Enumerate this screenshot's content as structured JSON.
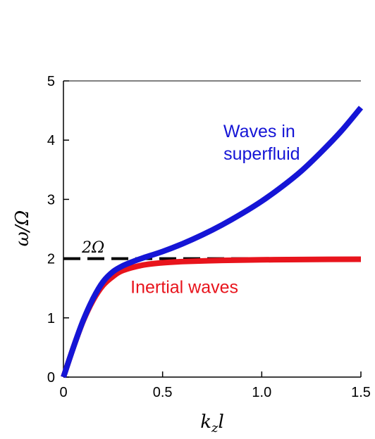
{
  "chart_data": {
    "type": "line",
    "xlabel": "k_z l",
    "ylabel": "ω/Ω",
    "xlim": [
      0,
      1.5
    ],
    "ylim": [
      0,
      5
    ],
    "x_ticks": [
      0,
      0.5,
      1.0,
      1.5
    ],
    "x_tick_labels": [
      "0",
      "0.5",
      "1.0",
      "1.5"
    ],
    "y_ticks": [
      0,
      1,
      2,
      3,
      4,
      5
    ],
    "y_tick_labels": [
      "0",
      "1",
      "2",
      "3",
      "4",
      "5"
    ],
    "grid": false,
    "legend": "none",
    "series": [
      {
        "name": "Waves in superfluid",
        "color": "#1515d6",
        "style": "solid",
        "points": [
          [
            0,
            0
          ],
          [
            0.05,
            0.5
          ],
          [
            0.1,
            0.96
          ],
          [
            0.15,
            1.33
          ],
          [
            0.2,
            1.61
          ],
          [
            0.25,
            1.78
          ],
          [
            0.3,
            1.88
          ],
          [
            0.35,
            1.95
          ],
          [
            0.4,
            2.01
          ],
          [
            0.5,
            2.12
          ],
          [
            0.6,
            2.25
          ],
          [
            0.7,
            2.4
          ],
          [
            0.8,
            2.57
          ],
          [
            0.9,
            2.76
          ],
          [
            1.0,
            2.97
          ],
          [
            1.1,
            3.21
          ],
          [
            1.2,
            3.48
          ],
          [
            1.3,
            3.8
          ],
          [
            1.4,
            4.15
          ],
          [
            1.5,
            4.55
          ]
        ]
      },
      {
        "name": "Inertial waves",
        "color": "#e8141c",
        "style": "solid",
        "points": [
          [
            0,
            0
          ],
          [
            0.05,
            0.5
          ],
          [
            0.1,
            0.95
          ],
          [
            0.15,
            1.3
          ],
          [
            0.2,
            1.55
          ],
          [
            0.25,
            1.7
          ],
          [
            0.3,
            1.8
          ],
          [
            0.4,
            1.89
          ],
          [
            0.5,
            1.93
          ],
          [
            0.6,
            1.95
          ],
          [
            0.8,
            1.97
          ],
          [
            1.0,
            1.98
          ],
          [
            1.2,
            1.985
          ],
          [
            1.5,
            1.99
          ]
        ]
      },
      {
        "name": "2Ω",
        "color": "#000000",
        "style": "dashed",
        "points": [
          [
            0,
            2
          ],
          [
            1.5,
            2
          ]
        ]
      }
    ],
    "annotations": [
      {
        "text_line1": "Waves in",
        "text_line2": "superfluid",
        "color": "#1515d6",
        "x": 1.0,
        "y": 4.05
      },
      {
        "text": "Inertial waves",
        "color": "#e8141c",
        "x": 0.61,
        "y": 1.42
      },
      {
        "text": "2Ω",
        "color": "#000000",
        "x": 0.15,
        "y": 2.1
      }
    ]
  }
}
